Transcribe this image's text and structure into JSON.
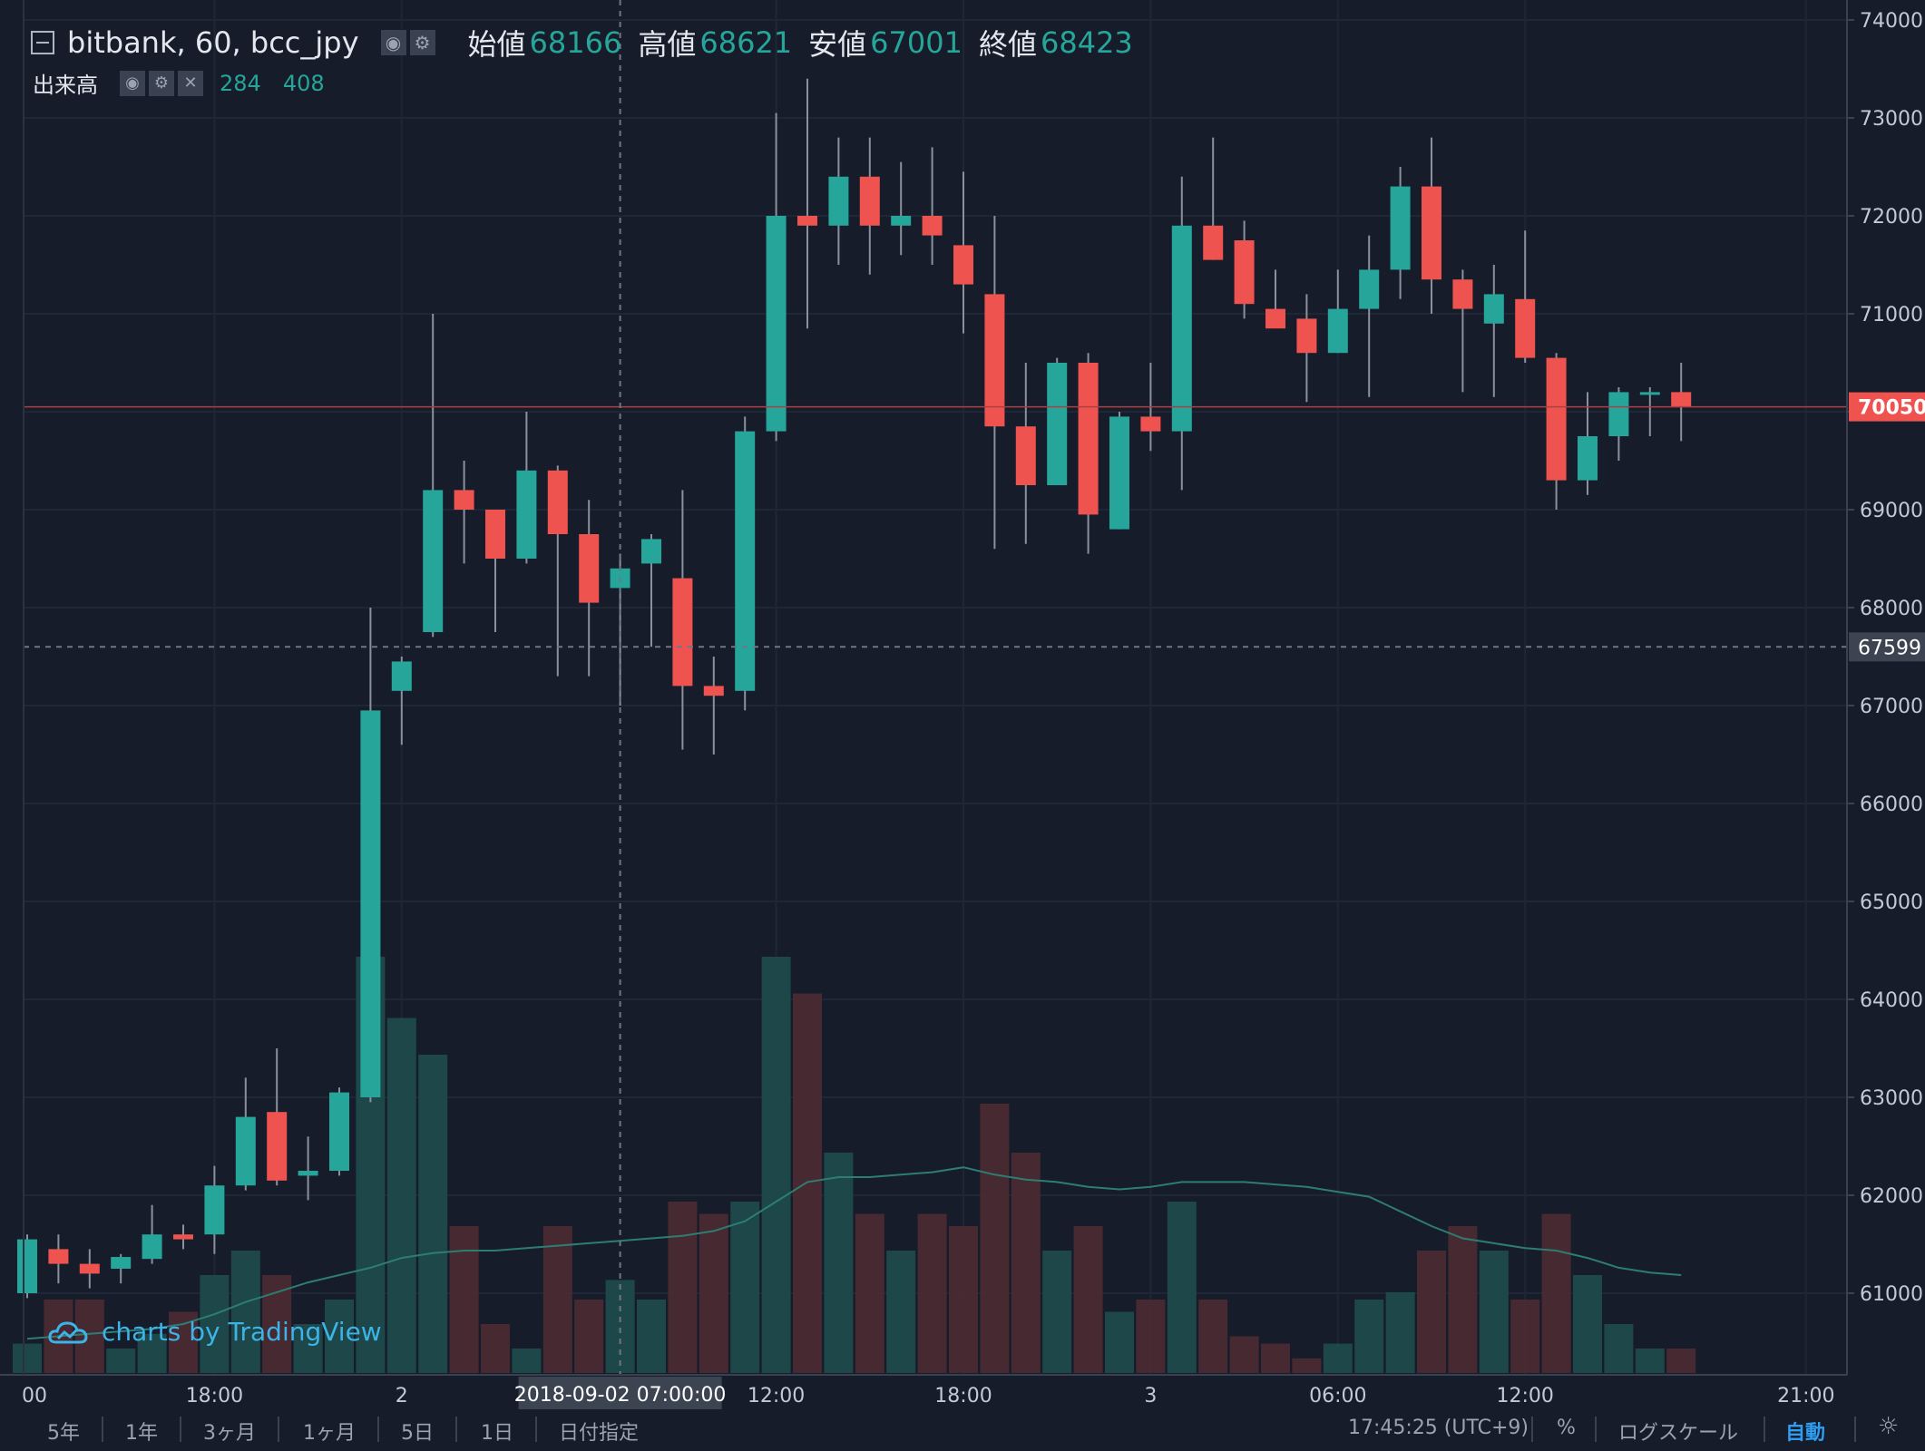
{
  "legend": {
    "symbol": "bitbank, 60, bcc_jpy",
    "open_label": "始値",
    "open": "68166",
    "high_label": "高値",
    "high": "68621",
    "low_label": "安値",
    "low": "67001",
    "close_label": "終値",
    "close": "68423"
  },
  "volume_legend": {
    "label": "出来高",
    "value": "284",
    "ma_value": "408"
  },
  "watermark": "charts by TradingView",
  "crosshair": {
    "time_label": "2018-09-02 07:00:00",
    "price_label": "67599"
  },
  "last_price_label": "70050",
  "bottombar": {
    "ranges": [
      "5年",
      "1年",
      "3ヶ月",
      "1ヶ月",
      "5日",
      "1日",
      "日付指定"
    ],
    "clock": "17:45:25 (UTC+9)",
    "percent": "%",
    "log": "ログスケール",
    "auto": "自動",
    "settings_icon": "gear-icon"
  },
  "colors": {
    "up": "#26a69a",
    "down": "#ef5350",
    "background": "#161c2a",
    "grid": "#1f2636"
  },
  "chart_data": {
    "type": "candlestick",
    "interval_minutes": 60,
    "ylim": [
      60200,
      74000
    ],
    "y_ticks": [
      61000,
      62000,
      63000,
      64000,
      65000,
      66000,
      67000,
      68000,
      69000,
      70000,
      71000,
      72000,
      73000,
      74000
    ],
    "x_tick_labels": [
      {
        "label": "00",
        "t": "2018-09-01 00:00"
      },
      {
        "label": "18:00",
        "t": "2018-09-01 18:00"
      },
      {
        "label": "2",
        "t": "2018-09-02 00:00"
      },
      {
        "label": "12:00",
        "t": "2018-09-02 12:00"
      },
      {
        "label": "18:00",
        "t": "2018-09-02 18:00"
      },
      {
        "label": "3",
        "t": "2018-09-03 00:00"
      },
      {
        "label": "06:00",
        "t": "2018-09-03 06:00"
      },
      {
        "label": "12:00",
        "t": "2018-09-03 12:00"
      },
      {
        "label": "21:00",
        "t": "2018-09-03 21:00"
      }
    ],
    "start_time": "2018-09-01 12:00",
    "candles": [
      {
        "o": 61000,
        "h": 61600,
        "l": 60950,
        "c": 61550
      },
      {
        "o": 61450,
        "h": 61600,
        "l": 61100,
        "c": 61300
      },
      {
        "o": 61300,
        "h": 61450,
        "l": 61050,
        "c": 61200
      },
      {
        "o": 61250,
        "h": 61400,
        "l": 61100,
        "c": 61370
      },
      {
        "o": 61350,
        "h": 61900,
        "l": 61300,
        "c": 61600
      },
      {
        "o": 61600,
        "h": 61700,
        "l": 61450,
        "c": 61550
      },
      {
        "o": 61600,
        "h": 62300,
        "l": 61400,
        "c": 62100
      },
      {
        "o": 62100,
        "h": 63200,
        "l": 62050,
        "c": 62800
      },
      {
        "o": 62850,
        "h": 63500,
        "l": 62100,
        "c": 62150
      },
      {
        "o": 62200,
        "h": 62600,
        "l": 61950,
        "c": 62250
      },
      {
        "o": 62250,
        "h": 63100,
        "l": 62200,
        "c": 63050
      },
      {
        "o": 63000,
        "h": 68000,
        "l": 62950,
        "c": 66950
      },
      {
        "o": 67150,
        "h": 67500,
        "l": 66600,
        "c": 67450
      },
      {
        "o": 67750,
        "h": 71000,
        "l": 67700,
        "c": 69200
      },
      {
        "o": 69200,
        "h": 69500,
        "l": 68450,
        "c": 69000
      },
      {
        "o": 69000,
        "h": 69000,
        "l": 67750,
        "c": 68500
      },
      {
        "o": 68500,
        "h": 70000,
        "l": 68450,
        "c": 69400
      },
      {
        "o": 69400,
        "h": 69450,
        "l": 67300,
        "c": 68750
      },
      {
        "o": 68750,
        "h": 69100,
        "l": 67300,
        "c": 68050
      },
      {
        "o": 68200,
        "h": 68550,
        "l": 67000,
        "c": 68400
      },
      {
        "o": 68450,
        "h": 68750,
        "l": 67600,
        "c": 68700
      },
      {
        "o": 68300,
        "h": 69200,
        "l": 66550,
        "c": 67200
      },
      {
        "o": 67200,
        "h": 67500,
        "l": 66500,
        "c": 67100
      },
      {
        "o": 67150,
        "h": 69950,
        "l": 66950,
        "c": 69800
      },
      {
        "o": 69800,
        "h": 73050,
        "l": 69700,
        "c": 72000
      },
      {
        "o": 72000,
        "h": 73400,
        "l": 70850,
        "c": 71900
      },
      {
        "o": 71900,
        "h": 72800,
        "l": 71500,
        "c": 72400
      },
      {
        "o": 72400,
        "h": 72800,
        "l": 71400,
        "c": 71900
      },
      {
        "o": 71900,
        "h": 72550,
        "l": 71600,
        "c": 72000
      },
      {
        "o": 72000,
        "h": 72700,
        "l": 71500,
        "c": 71800
      },
      {
        "o": 71700,
        "h": 72450,
        "l": 70800,
        "c": 71300
      },
      {
        "o": 71200,
        "h": 72000,
        "l": 68600,
        "c": 69850
      },
      {
        "o": 69850,
        "h": 70500,
        "l": 68650,
        "c": 69250
      },
      {
        "o": 69250,
        "h": 70550,
        "l": 69250,
        "c": 70500
      },
      {
        "o": 70500,
        "h": 70600,
        "l": 68550,
        "c": 68950
      },
      {
        "o": 68800,
        "h": 70000,
        "l": 68800,
        "c": 69950
      },
      {
        "o": 69950,
        "h": 70500,
        "l": 69600,
        "c": 69800
      },
      {
        "o": 69800,
        "h": 72400,
        "l": 69200,
        "c": 71900
      },
      {
        "o": 71900,
        "h": 72800,
        "l": 71550,
        "c": 71550
      },
      {
        "o": 71750,
        "h": 71950,
        "l": 70950,
        "c": 71100
      },
      {
        "o": 71050,
        "h": 71450,
        "l": 70950,
        "c": 70850
      },
      {
        "o": 70950,
        "h": 71200,
        "l": 70100,
        "c": 70600
      },
      {
        "o": 70600,
        "h": 71450,
        "l": 70600,
        "c": 71050
      },
      {
        "o": 71050,
        "h": 71800,
        "l": 70150,
        "c": 71450
      },
      {
        "o": 71450,
        "h": 72500,
        "l": 71150,
        "c": 72300
      },
      {
        "o": 72300,
        "h": 72800,
        "l": 71000,
        "c": 71350
      },
      {
        "o": 71350,
        "h": 71450,
        "l": 70200,
        "c": 71050
      },
      {
        "o": 70900,
        "h": 71500,
        "l": 70150,
        "c": 71200
      },
      {
        "o": 71150,
        "h": 71850,
        "l": 70500,
        "c": 70550
      },
      {
        "o": 70550,
        "h": 70600,
        "l": 69000,
        "c": 69300
      },
      {
        "o": 69300,
        "h": 70200,
        "l": 69150,
        "c": 69750
      },
      {
        "o": 69750,
        "h": 70250,
        "l": 69500,
        "c": 70200
      },
      {
        "o": 70180,
        "h": 70250,
        "l": 69750,
        "c": 70200
      },
      {
        "o": 70200,
        "h": 70500,
        "l": 69700,
        "c": 70050
      }
    ],
    "volume_scale_max": 2000,
    "volumes": [
      120,
      300,
      300,
      100,
      160,
      250,
      400,
      500,
      400,
      200,
      300,
      1700,
      1450,
      1300,
      600,
      200,
      100,
      600,
      300,
      380,
      300,
      700,
      650,
      700,
      1700,
      1550,
      900,
      650,
      500,
      650,
      600,
      1100,
      900,
      500,
      600,
      250,
      300,
      700,
      300,
      150,
      120,
      60,
      120,
      300,
      330,
      500,
      600,
      500,
      300,
      650,
      400,
      200,
      100,
      100
    ],
    "volume_ma": [
      140,
      150,
      160,
      170,
      180,
      200,
      240,
      290,
      330,
      370,
      400,
      430,
      470,
      490,
      500,
      500,
      510,
      520,
      530,
      540,
      550,
      560,
      580,
      620,
      700,
      780,
      800,
      800,
      810,
      820,
      840,
      810,
      790,
      780,
      760,
      750,
      760,
      780,
      780,
      780,
      770,
      760,
      740,
      720,
      660,
      600,
      550,
      530,
      510,
      500,
      470,
      430,
      410,
      400
    ]
  }
}
